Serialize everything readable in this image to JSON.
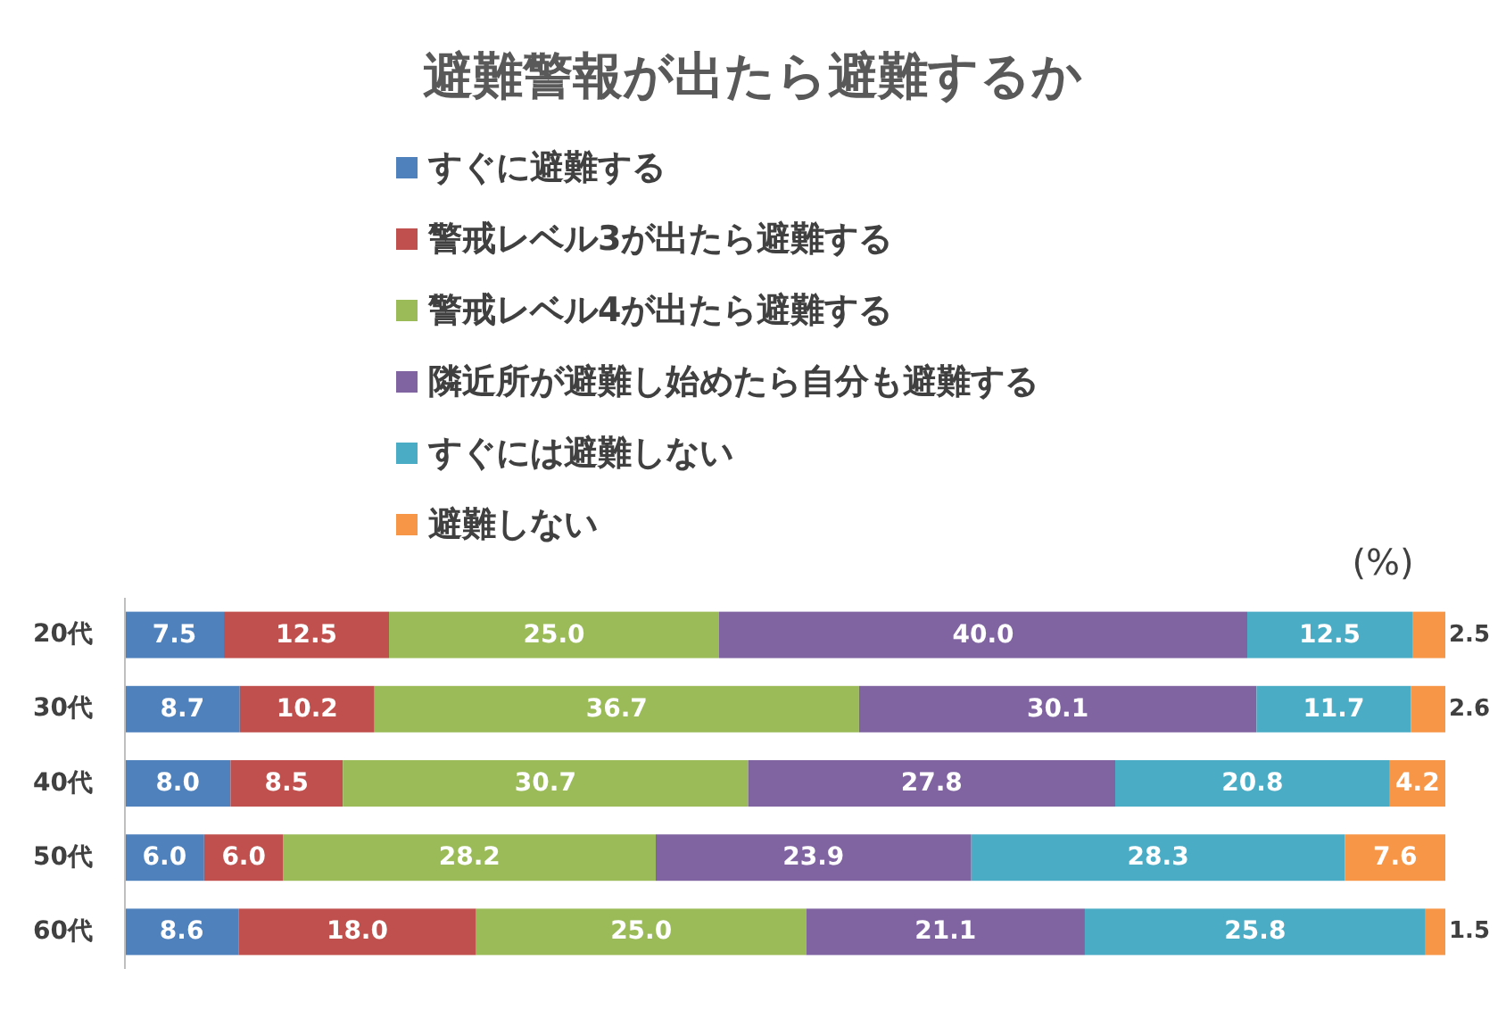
{
  "chart_data": {
    "type": "bar",
    "orientation": "horizontal",
    "stacked": true,
    "title": "避難警報が出たら避難するか",
    "annotations": [
      "(%)"
    ],
    "categories": [
      "20代",
      "30代",
      "40代",
      "50代",
      "60代"
    ],
    "series": [
      {
        "name": "すぐに避難する",
        "color": "#4f81bd",
        "values": [
          7.5,
          8.7,
          8.0,
          6.0,
          8.6
        ],
        "value_labels": [
          "7.5",
          "8.7",
          "8.0",
          "6.0",
          "8.6"
        ]
      },
      {
        "name": "警戒レベル3が出たら避難する",
        "color": "#c0504d",
        "values": [
          12.5,
          10.2,
          8.5,
          6.0,
          18.0
        ],
        "value_labels": [
          "12.5",
          "10.2",
          "8.5",
          "6.0",
          "18.0"
        ]
      },
      {
        "name": "警戒レベル4が出たら避難する",
        "color": "#9bbb59",
        "values": [
          25.0,
          36.7,
          30.7,
          28.2,
          25.0
        ],
        "value_labels": [
          "25.0",
          "36.7",
          "30.7",
          "28.2",
          "25.0"
        ]
      },
      {
        "name": "隣近所が避難し始めたら自分も避難する",
        "color": "#8064a2",
        "values": [
          40.0,
          30.1,
          27.8,
          23.9,
          21.1
        ],
        "value_labels": [
          "40.0",
          "30.1",
          "27.8",
          "23.9",
          "21.1"
        ]
      },
      {
        "name": "すぐには避難しない",
        "color": "#4bacc6",
        "values": [
          12.5,
          11.7,
          20.8,
          28.3,
          25.8
        ],
        "value_labels": [
          "12.5",
          "11.7",
          "20.8",
          "28.3",
          "25.8"
        ]
      },
      {
        "name": "避難しない",
        "color": "#f79646",
        "values": [
          2.5,
          2.6,
          4.2,
          7.6,
          1.5
        ],
        "value_labels": [
          "2.5",
          "2.6",
          "4.2",
          "7.6",
          "1.5"
        ]
      }
    ],
    "xlim": [
      0,
      100
    ],
    "legend": "top",
    "tick_labels": "y"
  }
}
